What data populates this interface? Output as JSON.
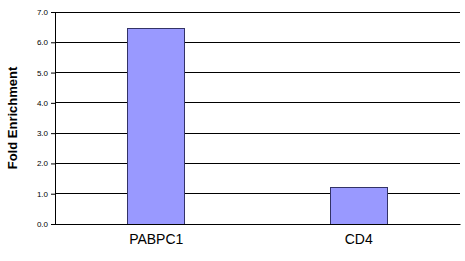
{
  "chart_data": {
    "type": "bar",
    "y_label": "Fold Enrichment",
    "categories": [
      "PABPC1",
      "CD4"
    ],
    "values": [
      6.45,
      1.2
    ],
    "color": "#9999ff",
    "ylim": [
      0,
      7
    ],
    "yticks": [
      {
        "value": 0,
        "label": "0.0"
      },
      {
        "value": 1,
        "label": "1.0"
      },
      {
        "value": 2,
        "label": "2.0"
      },
      {
        "value": 3,
        "label": "3.0"
      },
      {
        "value": 4,
        "label": "4.0"
      },
      {
        "value": 5,
        "label": "5.0"
      },
      {
        "value": 6,
        "label": "6.0"
      },
      {
        "value": 7,
        "label": "7.0"
      }
    ],
    "grid": true
  }
}
